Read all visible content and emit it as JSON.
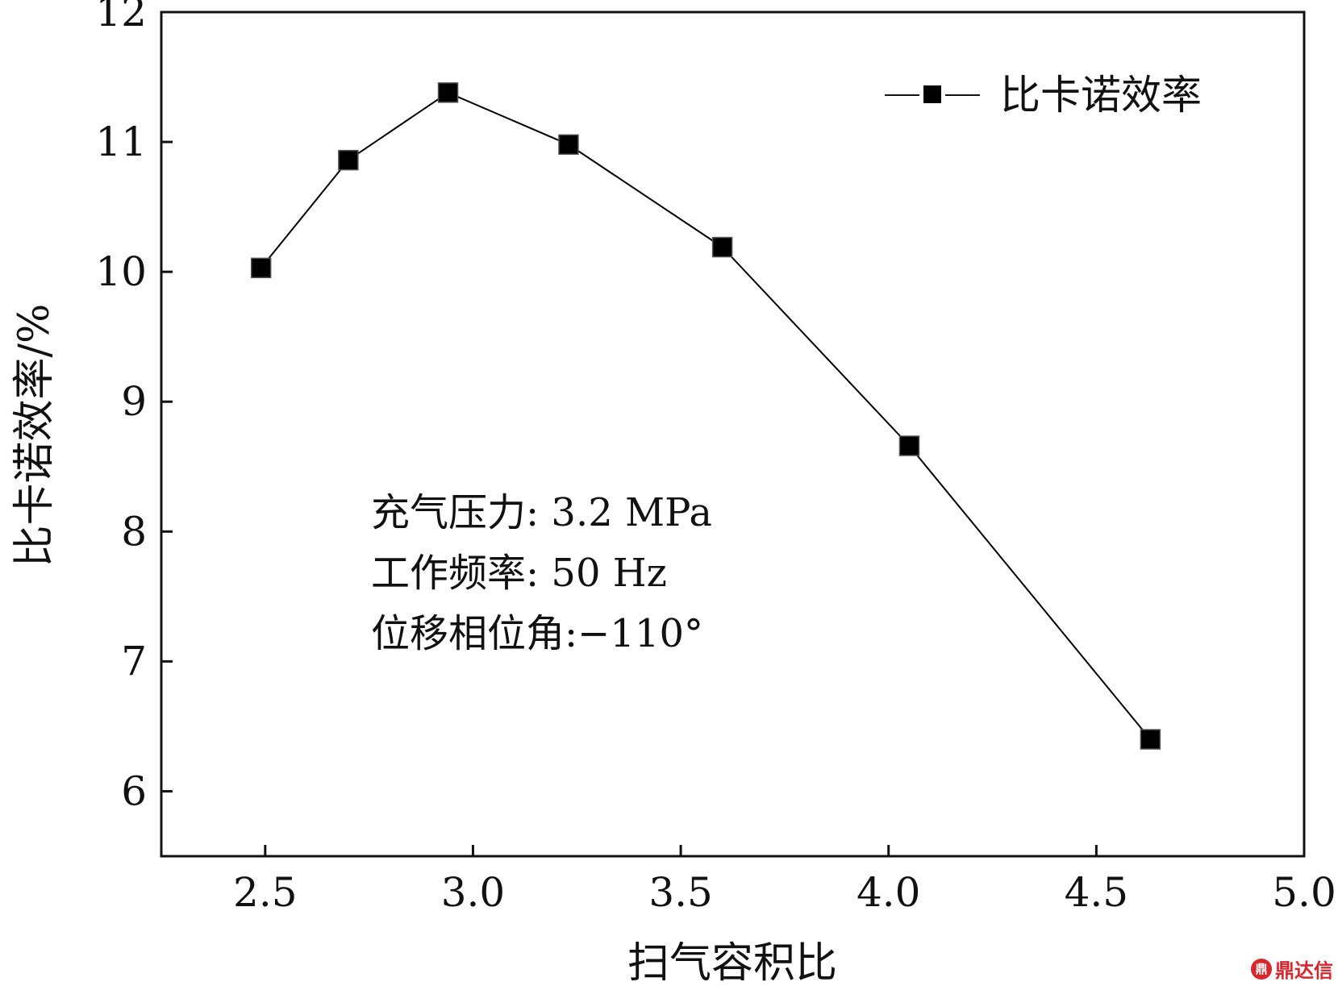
{
  "chart_data": {
    "type": "line",
    "title": "",
    "xlabel": "扫气容积比",
    "ylabel": "比卡诺效率/%",
    "xlim": [
      2.25,
      5.0
    ],
    "ylim": [
      5.5,
      12
    ],
    "xticks": [
      "2.5",
      "3.0",
      "3.5",
      "4.0",
      "4.5",
      "5.0"
    ],
    "yticks": [
      "6",
      "7",
      "8",
      "9",
      "10",
      "11",
      "12"
    ],
    "grid": false,
    "legend_position": "top-right",
    "series": [
      {
        "name": "比卡诺效率",
        "color": "#000000",
        "marker": "square",
        "x": [
          2.49,
          2.7,
          2.94,
          3.23,
          3.6,
          4.05,
          4.63
        ],
        "y": [
          10.03,
          10.86,
          11.38,
          10.98,
          10.19,
          8.66,
          6.4
        ]
      }
    ],
    "annotations": [
      "充气压力: 3.2 MPa",
      "工作频率: 50 Hz",
      "位移相位角:−110°"
    ]
  },
  "watermark": {
    "logo_text": "鼎",
    "text": "鼎达信"
  }
}
